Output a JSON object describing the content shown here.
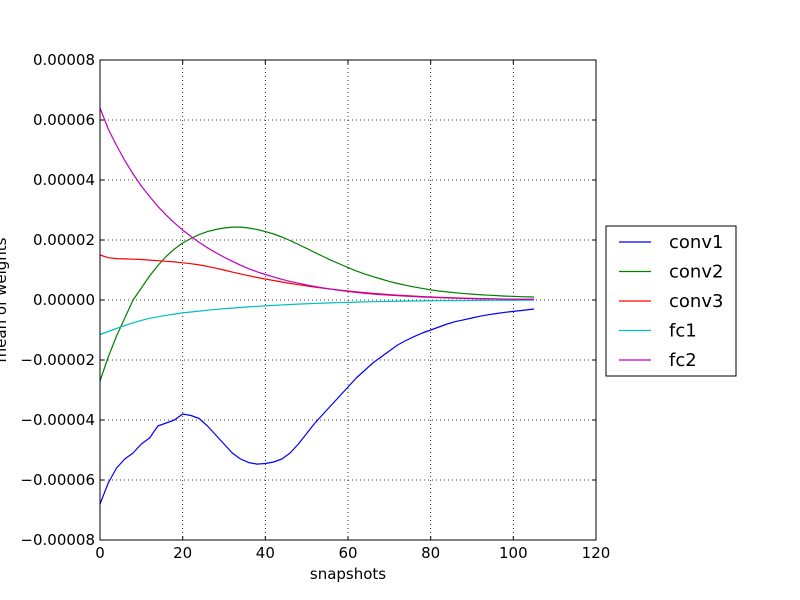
{
  "chart_data": {
    "type": "line",
    "title": "",
    "xlabel": "snapshots",
    "ylabel": "mean of weights",
    "xlim": [
      0,
      120
    ],
    "ylim": [
      -8e-05,
      8e-05
    ],
    "x_ticks": [
      0,
      20,
      40,
      60,
      80,
      100,
      120
    ],
    "x_tick_labels": [
      "0",
      "20",
      "40",
      "60",
      "80",
      "100",
      "120"
    ],
    "y_ticks": [
      -8e-05,
      -6e-05,
      -4e-05,
      -2e-05,
      0.0,
      2e-05,
      4e-05,
      6e-05,
      8e-05
    ],
    "y_tick_labels": [
      "−0.00008",
      "−0.00006",
      "−0.00004",
      "−0.00002",
      "0.00000",
      "0.00002",
      "0.00004",
      "0.00006",
      "0.00008"
    ],
    "grid": true,
    "legend_position": "outside-right",
    "x": [
      0,
      2,
      4,
      6,
      8,
      10,
      12,
      14,
      16,
      18,
      20,
      22,
      24,
      26,
      28,
      30,
      32,
      34,
      36,
      38,
      40,
      42,
      44,
      46,
      48,
      50,
      52,
      54,
      56,
      58,
      60,
      62,
      64,
      66,
      68,
      70,
      72,
      74,
      76,
      78,
      80,
      82,
      84,
      86,
      88,
      90,
      92,
      94,
      96,
      98,
      100,
      102,
      105
    ],
    "series": [
      {
        "name": "conv1",
        "color": "#0000ff",
        "values": [
          -6.8e-05,
          -6.1e-05,
          -5.6e-05,
          -5.3e-05,
          -5.1e-05,
          -4.8e-05,
          -4.6e-05,
          -4.2e-05,
          -4.1e-05,
          -4e-05,
          -3.8e-05,
          -3.85e-05,
          -3.95e-05,
          -4.2e-05,
          -4.5e-05,
          -4.8e-05,
          -5.1e-05,
          -5.3e-05,
          -5.42e-05,
          -5.47e-05,
          -5.45e-05,
          -5.4e-05,
          -5.3e-05,
          -5.1e-05,
          -4.8e-05,
          -4.45e-05,
          -4.1e-05,
          -3.8e-05,
          -3.5e-05,
          -3.2e-05,
          -2.9e-05,
          -2.6e-05,
          -2.35e-05,
          -2.1e-05,
          -1.9e-05,
          -1.7e-05,
          -1.5e-05,
          -1.35e-05,
          -1.22e-05,
          -1.1e-05,
          -1e-05,
          -9e-06,
          -8e-06,
          -7.2e-06,
          -6.6e-06,
          -6e-06,
          -5.4e-06,
          -4.9e-06,
          -4.5e-06,
          -4.1e-06,
          -3.8e-06,
          -3.5e-06,
          -3e-06
        ]
      },
      {
        "name": "conv2",
        "color": "#008000",
        "values": [
          -2.7e-05,
          -1.9e-05,
          -1.2e-05,
          -6e-06,
          0.0,
          4e-06,
          8e-06,
          1.15e-05,
          1.45e-05,
          1.7e-05,
          1.9e-05,
          2.05e-05,
          2.18e-05,
          2.28e-05,
          2.35e-05,
          2.4e-05,
          2.43e-05,
          2.43e-05,
          2.4e-05,
          2.35e-05,
          2.28e-05,
          2.2e-05,
          2.1e-05,
          1.98e-05,
          1.85e-05,
          1.72e-05,
          1.58e-05,
          1.45e-05,
          1.32e-05,
          1.2e-05,
          1.08e-05,
          9.7e-06,
          8.7e-06,
          7.8e-06,
          7e-06,
          6.2e-06,
          5.5e-06,
          4.9e-06,
          4.35e-06,
          3.85e-06,
          3.4e-06,
          3e-06,
          2.7e-06,
          2.4e-06,
          2.15e-06,
          1.95e-06,
          1.75e-06,
          1.6e-06,
          1.45e-06,
          1.3e-06,
          1.2e-06,
          1.1e-06,
          1e-06
        ]
      },
      {
        "name": "conv3",
        "color": "#ff0000",
        "values": [
          1.5e-05,
          1.41e-05,
          1.38e-05,
          1.37e-05,
          1.36e-05,
          1.35e-05,
          1.33e-05,
          1.31e-05,
          1.29e-05,
          1.27e-05,
          1.24e-05,
          1.21e-05,
          1.17e-05,
          1.12e-05,
          1.06e-05,
          1e-05,
          9.3e-06,
          8.7e-06,
          8.1e-06,
          7.5e-06,
          7e-06,
          6.5e-06,
          6e-06,
          5.55e-06,
          5.1e-06,
          4.7e-06,
          4.3e-06,
          3.95e-06,
          3.6e-06,
          3.3e-06,
          3e-06,
          2.7e-06,
          2.45e-06,
          2.2e-06,
          2e-06,
          1.8e-06,
          1.6e-06,
          1.45e-06,
          1.3e-06,
          1.15e-06,
          1e-06,
          9e-07,
          8e-07,
          7e-07,
          6e-07,
          5e-07,
          4.5e-07,
          4e-07,
          3.5e-07,
          3e-07,
          2.5e-07,
          2e-07,
          2e-07
        ]
      },
      {
        "name": "fc1",
        "color": "#00bfbf",
        "values": [
          -1.15e-05,
          -1.05e-05,
          -9.5e-06,
          -8.5e-06,
          -7.6e-06,
          -6.8e-06,
          -6.1e-06,
          -5.6e-06,
          -5.1e-06,
          -4.7e-06,
          -4.3e-06,
          -4e-06,
          -3.7e-06,
          -3.4e-06,
          -3.15e-06,
          -2.9e-06,
          -2.7e-06,
          -2.5e-06,
          -2.3e-06,
          -2.1e-06,
          -1.95e-06,
          -1.8e-06,
          -1.65e-06,
          -1.5e-06,
          -1.38e-06,
          -1.26e-06,
          -1.15e-06,
          -1.05e-06,
          -9.5e-07,
          -8.6e-07,
          -7.8e-07,
          -7e-07,
          -6.3e-07,
          -5.7e-07,
          -5.1e-07,
          -4.6e-07,
          -4.1e-07,
          -3.7e-07,
          -3.3e-07,
          -2.9e-07,
          -2.6e-07,
          -2.3e-07,
          -2e-07,
          -1.8e-07,
          -1.6e-07,
          -1.4e-07,
          -1.2e-07,
          -1.1e-07,
          -1e-07,
          -9e-08,
          -8e-08,
          -7e-08,
          -6e-08
        ]
      },
      {
        "name": "fc2",
        "color": "#bf00bf",
        "values": [
          6.4e-05,
          5.7e-05,
          5.15e-05,
          4.65e-05,
          4.2e-05,
          3.8e-05,
          3.45e-05,
          3.12e-05,
          2.83e-05,
          2.57e-05,
          2.33e-05,
          2.12e-05,
          1.92e-05,
          1.74e-05,
          1.58e-05,
          1.43e-05,
          1.29e-05,
          1.16e-05,
          1.04e-05,
          9.4e-06,
          8.5e-06,
          7.7e-06,
          6.9e-06,
          6.2e-06,
          5.6e-06,
          5e-06,
          4.5e-06,
          4e-06,
          3.6e-06,
          3.2e-06,
          2.85e-06,
          2.55e-06,
          2.25e-06,
          2e-06,
          1.8e-06,
          1.6e-06,
          1.45e-06,
          1.3e-06,
          1.15e-06,
          1e-06,
          9e-07,
          8e-07,
          7e-07,
          6e-07,
          5.5e-07,
          5e-07,
          4.5e-07,
          4e-07,
          3.5e-07,
          3e-07,
          2.7e-07,
          2.4e-07,
          2e-07
        ]
      }
    ]
  }
}
